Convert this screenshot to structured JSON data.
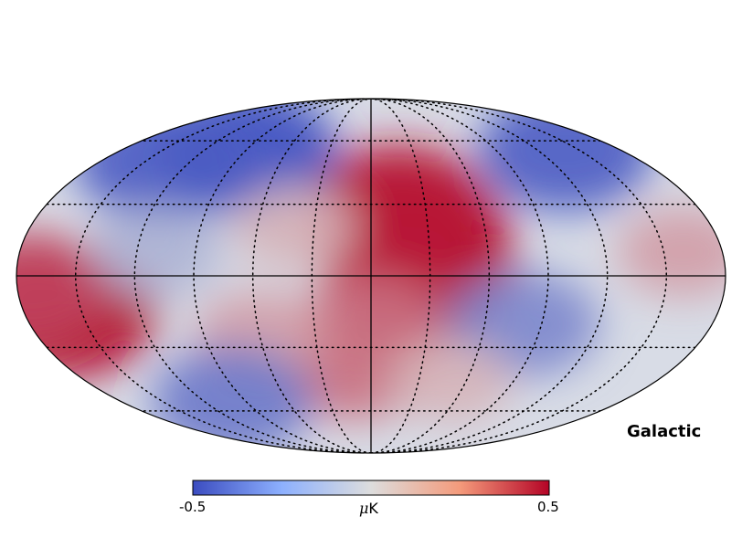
{
  "map": {
    "projection": "mollweide",
    "coord_label": "Galactic",
    "graticule": true,
    "colormap": "coolwarm",
    "colors": {
      "cold": "#3b4cc0",
      "neutral": "#dddddd",
      "warm": "#b40426"
    },
    "regions": [
      {
        "lon": -20,
        "lat": 18,
        "value": 0.6
      },
      {
        "lon": -25,
        "lat": 5,
        "value": 0.55
      },
      {
        "lon": -22,
        "lat": -5,
        "value": 0.45
      },
      {
        "lon": -15,
        "lat": 30,
        "value": 0.45
      },
      {
        "lon": 160,
        "lat": -15,
        "value": 0.55
      },
      {
        "lon": 175,
        "lat": -5,
        "value": 0.35
      },
      {
        "lon": 0,
        "lat": -20,
        "value": 0.25
      },
      {
        "lon": 10,
        "lat": -40,
        "value": 0.25
      },
      {
        "lon": 60,
        "lat": -25,
        "value": 0.15
      },
      {
        "lon": 90,
        "lat": 55,
        "value": -0.5
      },
      {
        "lon": 140,
        "lat": 50,
        "value": -0.45
      },
      {
        "lon": -140,
        "lat": 55,
        "value": -0.45
      },
      {
        "lon": 110,
        "lat": 10,
        "value": -0.15
      },
      {
        "lon": 100,
        "lat": -55,
        "value": -0.35
      },
      {
        "lon": -80,
        "lat": -20,
        "value": -0.3
      },
      {
        "lon": -160,
        "lat": 10,
        "value": 0.15
      },
      {
        "lon": 40,
        "lat": 20,
        "value": 0.1
      },
      {
        "lon": -50,
        "lat": -45,
        "value": 0.1
      }
    ]
  },
  "colorbar": {
    "min_label": "-0.5",
    "max_label": "0.5",
    "unit_symbol": "μ",
    "unit": "K",
    "range": [
      -0.5,
      0.5
    ]
  }
}
